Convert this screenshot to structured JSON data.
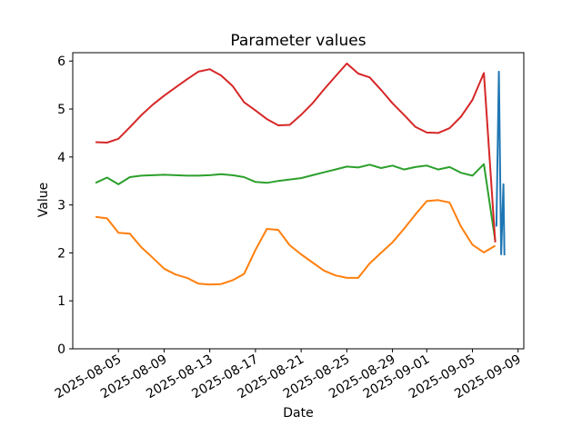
{
  "chart_data": {
    "type": "line",
    "title": "Parameter values",
    "xlabel": "Date",
    "ylabel": "Value",
    "grid": false,
    "legend": false,
    "background_color": "#ffffff",
    "axis_color": "#000000",
    "x_unit": "days since 2025-08-03 (daily samples)",
    "x_start_date": "2025-08-03",
    "x_end_date": "2025-09-07",
    "xlim_days": [
      -2,
      37.5
    ],
    "ylim": [
      0,
      6.175
    ],
    "yticks": [
      0,
      1,
      2,
      3,
      4,
      5,
      6
    ],
    "xticks": [
      {
        "d": 2,
        "label": "2025-08-05"
      },
      {
        "d": 6,
        "label": "2025-08-09"
      },
      {
        "d": 10,
        "label": "2025-08-13"
      },
      {
        "d": 14,
        "label": "2025-08-17"
      },
      {
        "d": 18,
        "label": "2025-08-21"
      },
      {
        "d": 22,
        "label": "2025-08-25"
      },
      {
        "d": 26,
        "label": "2025-08-29"
      },
      {
        "d": 29,
        "label": "2025-09-01"
      },
      {
        "d": 33,
        "label": "2025-09-05"
      },
      {
        "d": 37,
        "label": "2025-09-09"
      }
    ],
    "series": [
      {
        "id": "series-blue",
        "color": "#1f77b4",
        "points": [
          [
            35.1,
            2.55
          ],
          [
            35.32,
            5.78
          ],
          [
            35.52,
            1.97
          ],
          [
            35.72,
            3.43
          ],
          [
            35.8,
            1.95
          ]
        ]
      },
      {
        "id": "series-orange",
        "color": "#ff7f0e",
        "daily_values": [
          2.75,
          2.72,
          2.42,
          2.4,
          2.12,
          1.9,
          1.67,
          1.55,
          1.48,
          1.36,
          1.34,
          1.35,
          1.43,
          1.56,
          2.06,
          2.5,
          2.48,
          2.16,
          1.97,
          1.8,
          1.63,
          1.53,
          1.48,
          1.48,
          1.78,
          2.0,
          2.22,
          2.5,
          2.8,
          3.08,
          3.1,
          3.05,
          2.55,
          2.17,
          2.01,
          2.15
        ]
      },
      {
        "id": "series-green",
        "color": "#2ca02c",
        "daily_values": [
          3.46,
          3.57,
          3.43,
          3.58,
          3.61,
          3.62,
          3.63,
          3.62,
          3.61,
          3.61,
          3.62,
          3.64,
          3.62,
          3.58,
          3.48,
          3.46,
          3.5,
          3.53,
          3.56,
          3.62,
          3.68,
          3.74,
          3.8,
          3.78,
          3.84,
          3.77,
          3.82,
          3.74,
          3.79,
          3.82,
          3.74,
          3.79,
          3.67,
          3.61,
          3.85,
          2.25
        ]
      },
      {
        "id": "series-red",
        "color": "#d62728",
        "daily_values": [
          4.31,
          4.3,
          4.38,
          4.62,
          4.87,
          5.09,
          5.28,
          5.45,
          5.62,
          5.78,
          5.83,
          5.7,
          5.48,
          5.14,
          4.97,
          4.79,
          4.66,
          4.67,
          4.88,
          5.12,
          5.41,
          5.68,
          5.95,
          5.74,
          5.66,
          5.4,
          5.12,
          4.88,
          4.63,
          4.51,
          4.5,
          4.6,
          4.84,
          5.19,
          5.75,
          2.22
        ]
      }
    ]
  }
}
